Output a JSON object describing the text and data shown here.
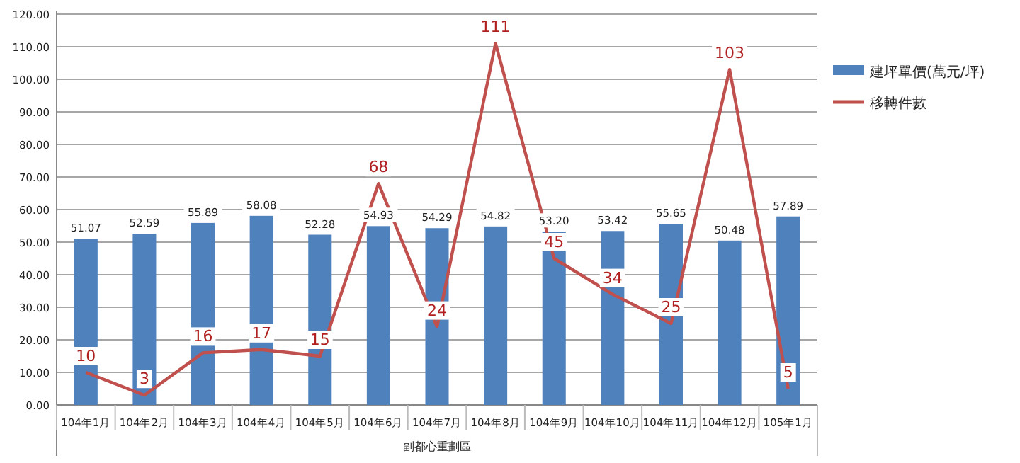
{
  "chart_data": {
    "type": "bar",
    "xlabel": "副都心重劃區",
    "categories": [
      "104年1月",
      "104年2月",
      "104年3月",
      "104年4月",
      "104年5月",
      "104年6月",
      "104年7月",
      "104年8月",
      "104年9月",
      "104年10月",
      "104年11月",
      "104年12月",
      "105年1月"
    ],
    "series": [
      {
        "name": "建坪單價(萬元/坪)",
        "color": "#4f81bd",
        "values": [
          51.07,
          52.59,
          55.89,
          58.08,
          52.28,
          54.93,
          54.29,
          54.82,
          53.2,
          53.42,
          55.65,
          50.48,
          57.89
        ],
        "value_labels": [
          "51.07",
          "52.59",
          "55.89",
          "58.08",
          "52.28",
          "54.93",
          "54.29",
          "54.82",
          "53.20",
          "53.42",
          "55.65",
          "50.48",
          "57.89"
        ]
      },
      {
        "name": "移轉件數",
        "type": "line",
        "color": "#c0504d",
        "values": [
          10,
          3,
          16,
          17,
          15,
          68,
          24,
          111,
          45,
          34,
          25,
          103,
          5
        ]
      }
    ],
    "ylim": [
      0,
      120
    ],
    "yticks": [
      {
        "value": 0,
        "label": "0.00"
      },
      {
        "value": 10,
        "label": "10.00"
      },
      {
        "value": 20,
        "label": "20.00"
      },
      {
        "value": 30,
        "label": "30.00"
      },
      {
        "value": 40,
        "label": "40.00"
      },
      {
        "value": 50,
        "label": "50.00"
      },
      {
        "value": 60,
        "label": "60.00"
      },
      {
        "value": 70,
        "label": "70.00"
      },
      {
        "value": 80,
        "label": "80.00"
      },
      {
        "value": 90,
        "label": "90.00"
      },
      {
        "value": 100,
        "label": "100.00"
      },
      {
        "value": 110,
        "label": "110.00"
      },
      {
        "value": 120,
        "label": "120.00"
      }
    ],
    "grid": "y",
    "legend": "right",
    "data_labels": true,
    "marker": "none",
    "line_style": "solid"
  }
}
